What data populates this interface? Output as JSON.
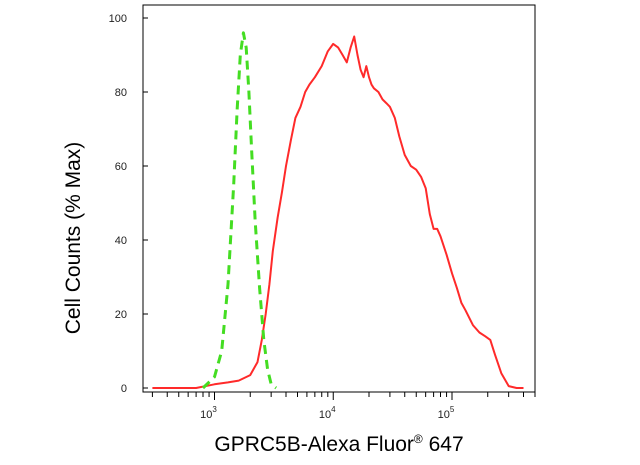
{
  "chart_data": {
    "type": "line",
    "title": "",
    "xlabel_main": "GPRC5B-Alexa Fluor",
    "xlabel_sup": "®",
    "xlabel_end": " 647",
    "ylabel": "Cell Counts (% Max)",
    "x_scale": "log",
    "xlim": [
      250,
      500000
    ],
    "ylim": [
      0,
      100
    ],
    "grid": false,
    "legend": "none",
    "y_ticks": [
      0,
      20,
      40,
      60,
      80,
      100
    ],
    "y_tick_labels": [
      "0",
      "20",
      "40",
      "60",
      "80",
      "100"
    ],
    "x_major_ticks": [
      1000,
      10000,
      100000
    ],
    "x_tick_base": "10",
    "x_tick_exponents": [
      "3",
      "4",
      "5"
    ],
    "series": [
      {
        "color": "#ff2a2a",
        "style": "solid",
        "x": [
          300,
          700,
          1000,
          1300,
          1600,
          2000,
          2300,
          2500,
          2700,
          2900,
          3100,
          3400,
          3700,
          4000,
          4400,
          4800,
          5300,
          5800,
          6300,
          7000,
          8000,
          9000,
          10000,
          11000,
          12000,
          13000,
          14000,
          15000,
          16000,
          17000,
          18000,
          19000,
          20000,
          21000,
          22000,
          24000,
          26000,
          28000,
          30000,
          33000,
          36000,
          40000,
          45000,
          50000,
          55000,
          60000,
          65000,
          70000,
          75000,
          80000,
          90000,
          100000,
          110000,
          120000,
          130000,
          150000,
          170000,
          190000,
          210000,
          230000,
          260000,
          300000,
          350000,
          400000
        ],
        "y": [
          0,
          0,
          1,
          1.5,
          2,
          3.5,
          7,
          13,
          20,
          28,
          37,
          46,
          53,
          60,
          67,
          73,
          76,
          80,
          82,
          84,
          87,
          91,
          93,
          92,
          90,
          88,
          92,
          95,
          90,
          86,
          84,
          87,
          84,
          82,
          81,
          80,
          78,
          77,
          76,
          73,
          68,
          63,
          60,
          59,
          57,
          54,
          47,
          43,
          43,
          41,
          36,
          31,
          27,
          23,
          21,
          17,
          15,
          14,
          13,
          9,
          4,
          0.5,
          0,
          0
        ]
      },
      {
        "color": "#44dd22",
        "style": "dashed",
        "x": [
          800,
          1000,
          1150,
          1300,
          1450,
          1550,
          1650,
          1750,
          1850,
          1950,
          2050,
          2200,
          2400,
          2600,
          2800,
          3000,
          3300
        ],
        "y": [
          0,
          3,
          10,
          28,
          55,
          75,
          90,
          96,
          92,
          80,
          65,
          45,
          27,
          13,
          5,
          1,
          0
        ]
      }
    ]
  }
}
